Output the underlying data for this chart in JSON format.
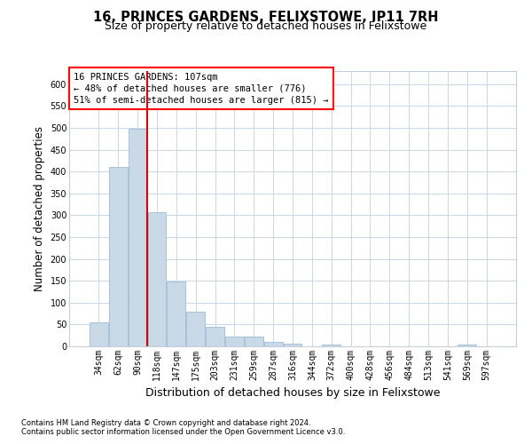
{
  "title": "16, PRINCES GARDENS, FELIXSTOWE, IP11 7RH",
  "subtitle": "Size of property relative to detached houses in Felixstowe",
  "xlabel": "Distribution of detached houses by size in Felixstowe",
  "ylabel": "Number of detached properties",
  "footnote1": "Contains HM Land Registry data © Crown copyright and database right 2024.",
  "footnote2": "Contains public sector information licensed under the Open Government Licence v3.0.",
  "annotation_line1": "16 PRINCES GARDENS: 107sqm",
  "annotation_line2": "← 48% of detached houses are smaller (776)",
  "annotation_line3": "51% of semi-detached houses are larger (815) →",
  "bar_color": "#c9d9e8",
  "bar_edge_color": "#a0bcd4",
  "vline_color": "#cc0000",
  "categories": [
    "34sqm",
    "62sqm",
    "90sqm",
    "118sqm",
    "147sqm",
    "175sqm",
    "203sqm",
    "231sqm",
    "259sqm",
    "287sqm",
    "316sqm",
    "344sqm",
    "372sqm",
    "400sqm",
    "428sqm",
    "456sqm",
    "484sqm",
    "513sqm",
    "541sqm",
    "569sqm",
    "597sqm"
  ],
  "values": [
    55,
    410,
    497,
    307,
    148,
    80,
    45,
    22,
    22,
    10,
    7,
    0,
    5,
    0,
    0,
    0,
    0,
    0,
    0,
    5,
    0
  ],
  "ylim": [
    0,
    630
  ],
  "yticks": [
    0,
    50,
    100,
    150,
    200,
    250,
    300,
    350,
    400,
    450,
    500,
    550,
    600
  ],
  "vline_x": 2.5,
  "background_color": "#ffffff",
  "grid_color": "#c8d8e8",
  "title_fontsize": 10.5,
  "subtitle_fontsize": 9,
  "ylabel_fontsize": 8.5,
  "xlabel_fontsize": 9,
  "tick_fontsize": 7,
  "annot_fontsize": 7.5,
  "footnote_fontsize": 6
}
